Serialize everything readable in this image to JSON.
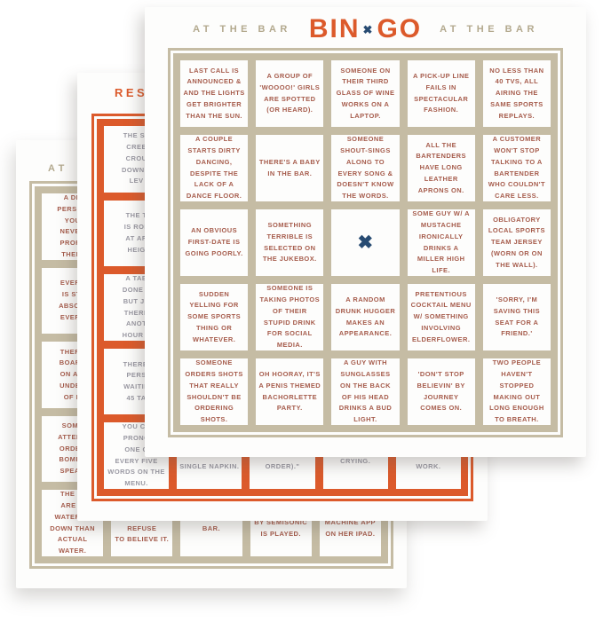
{
  "colors": {
    "tan_border": "#c5bca4",
    "orange": "#dc5a2b",
    "red_text": "#a65c4c",
    "gray_text": "#9a99a3",
    "navy_x": "#274b72",
    "tan_header_text": "#b3a98e"
  },
  "front_card": {
    "header_left": "AT THE BAR",
    "header_right": "AT THE BAR",
    "logo_bin": "BIN",
    "logo_x": "✖",
    "logo_go": "GO",
    "free_space_mark": "✖",
    "rows": [
      [
        "LAST CALL IS ANNOUNCED & AND THE LIGHTS GET BRIGHTER THAN THE SUN.",
        "A GROUP OF 'WOOOO!' GIRLS ARE SPOTTED (OR HEARD).",
        "SOMEONE ON THEIR THIRD GLASS OF WINE WORKS ON A LAPTOP.",
        "A PICK-UP LINE FAILS IN SPECTACULAR FASHION.",
        "NO LESS THAN 40 TVS, ALL AIRING THE SAME SPORTS REPLAYS."
      ],
      [
        "A COUPLE STARTS DIRTY DANCING, DESPITE THE LACK OF A DANCE FLOOR.",
        "THERE'S A BABY IN THE BAR.",
        "SOMEONE SHOUT-SINGS ALONG TO EVERY SONG & DOESN'T KNOW THE WORDS.",
        "ALL THE BARTENDERS HAVE LONG LEATHER APRONS ON.",
        "A CUSTOMER WON'T STOP TALKING TO A BARTENDER WHO COULDN'T CARE LESS."
      ],
      [
        "AN OBVIOUS FIRST-DATE IS GOING POORLY.",
        "SOMETHING TERRIBLE IS SELECTED ON THE JUKEBOX.",
        "",
        "SOME GUY W/ A MUSTACHE IRONICALLY DRINKS A MILLER HIGH LIFE.",
        "OBLIGATORY LOCAL SPORTS TEAM JERSEY (WORN OR ON THE WALL)."
      ],
      [
        "SUDDEN YELLING FOR SOME SPORTS THING OR WHATEVER.",
        "SOMEONE IS TAKING PHOTOS OF THEIR STUPID DRINK FOR SOCIAL MEDIA.",
        "A RANDOM DRUNK HUGGER MAKES AN APPEARANCE.",
        "PRETENTIOUS COCKTAIL MENU W/ SOMETHING INVOLVING ELDERFLOWER.",
        "'SORRY, I'M SAVING THIS SEAT FOR A FRIEND.'"
      ],
      [
        "SOMEONE ORDERS SHOTS THAT REALLY SHOULDN'T BE ORDERING SHOTS.",
        "OH HOORAY, IT'S A PENIS THEMED BACHORLETTE PARTY.",
        "A GUY WITH SUNGLASSES ON THE BACK OF HIS HEAD DRINKS A BUD LIGHT.",
        "'DON'T STOP BELIEVIN' BY JOURNEY COMES ON.",
        "TWO PEOPLE HAVEN'T STOPPED MAKING OUT LONG ENOUGH TO BREATH."
      ]
    ]
  },
  "middle_card": {
    "header_fragment": "RES",
    "left_column": [
      "THE SE\nCREE\nCROU\nDOWN T\nLEV",
      "THE T\nIS ROL\nAT AR\nHEIG",
      "A TAB\nDONE E\nBUT JU\nTHERE\nANOT\nHOUR A",
      "THERE'\nPERS\nWAITIN\n45 TA",
      "YOU CA\nPRONO\nONE O\nEVERY FIVE\nWORDS ON THE\nMENU."
    ],
    "bottom_row": [
      "TO CLEAN IT\nUP WITH A\nSINGLE NAPKIN.",
      "WHATEVER YOU\nJUST TRIED TO\nORDER).\"",
      "WON'T STOP\nCRYING.",
      "MENU THAT\nDOESN'T\nWORK."
    ]
  },
  "back_card": {
    "header_fragment": "AT",
    "left_column": [
      "A DR\nPERSON\nYOU\nNEVER\nPROFE\nTHEIR",
      "EVERY\nIS STI\nABSOLI\nEVERY",
      "THERE\nBOARD\nON A S\nUNDER\nOF D",
      "SOME\nATTEMP\nORDER\nBOMBS\nSPEAK",
      "THE DI\nARE M\nWATERED\nDOWN THAN\nACTUAL\nWATER."
    ],
    "bottom_row": [
      "BEEN STOOD\nUP & THEY\nREFUSE\nTO BELIEVE IT.",
      "DOG IN THE\nBAR.",
      "CLOSING TIME\nBY SEMISONIC\nIS PLAYED.",
      "A SLOT\nMACHINE APP\nON HER IPAD."
    ]
  }
}
